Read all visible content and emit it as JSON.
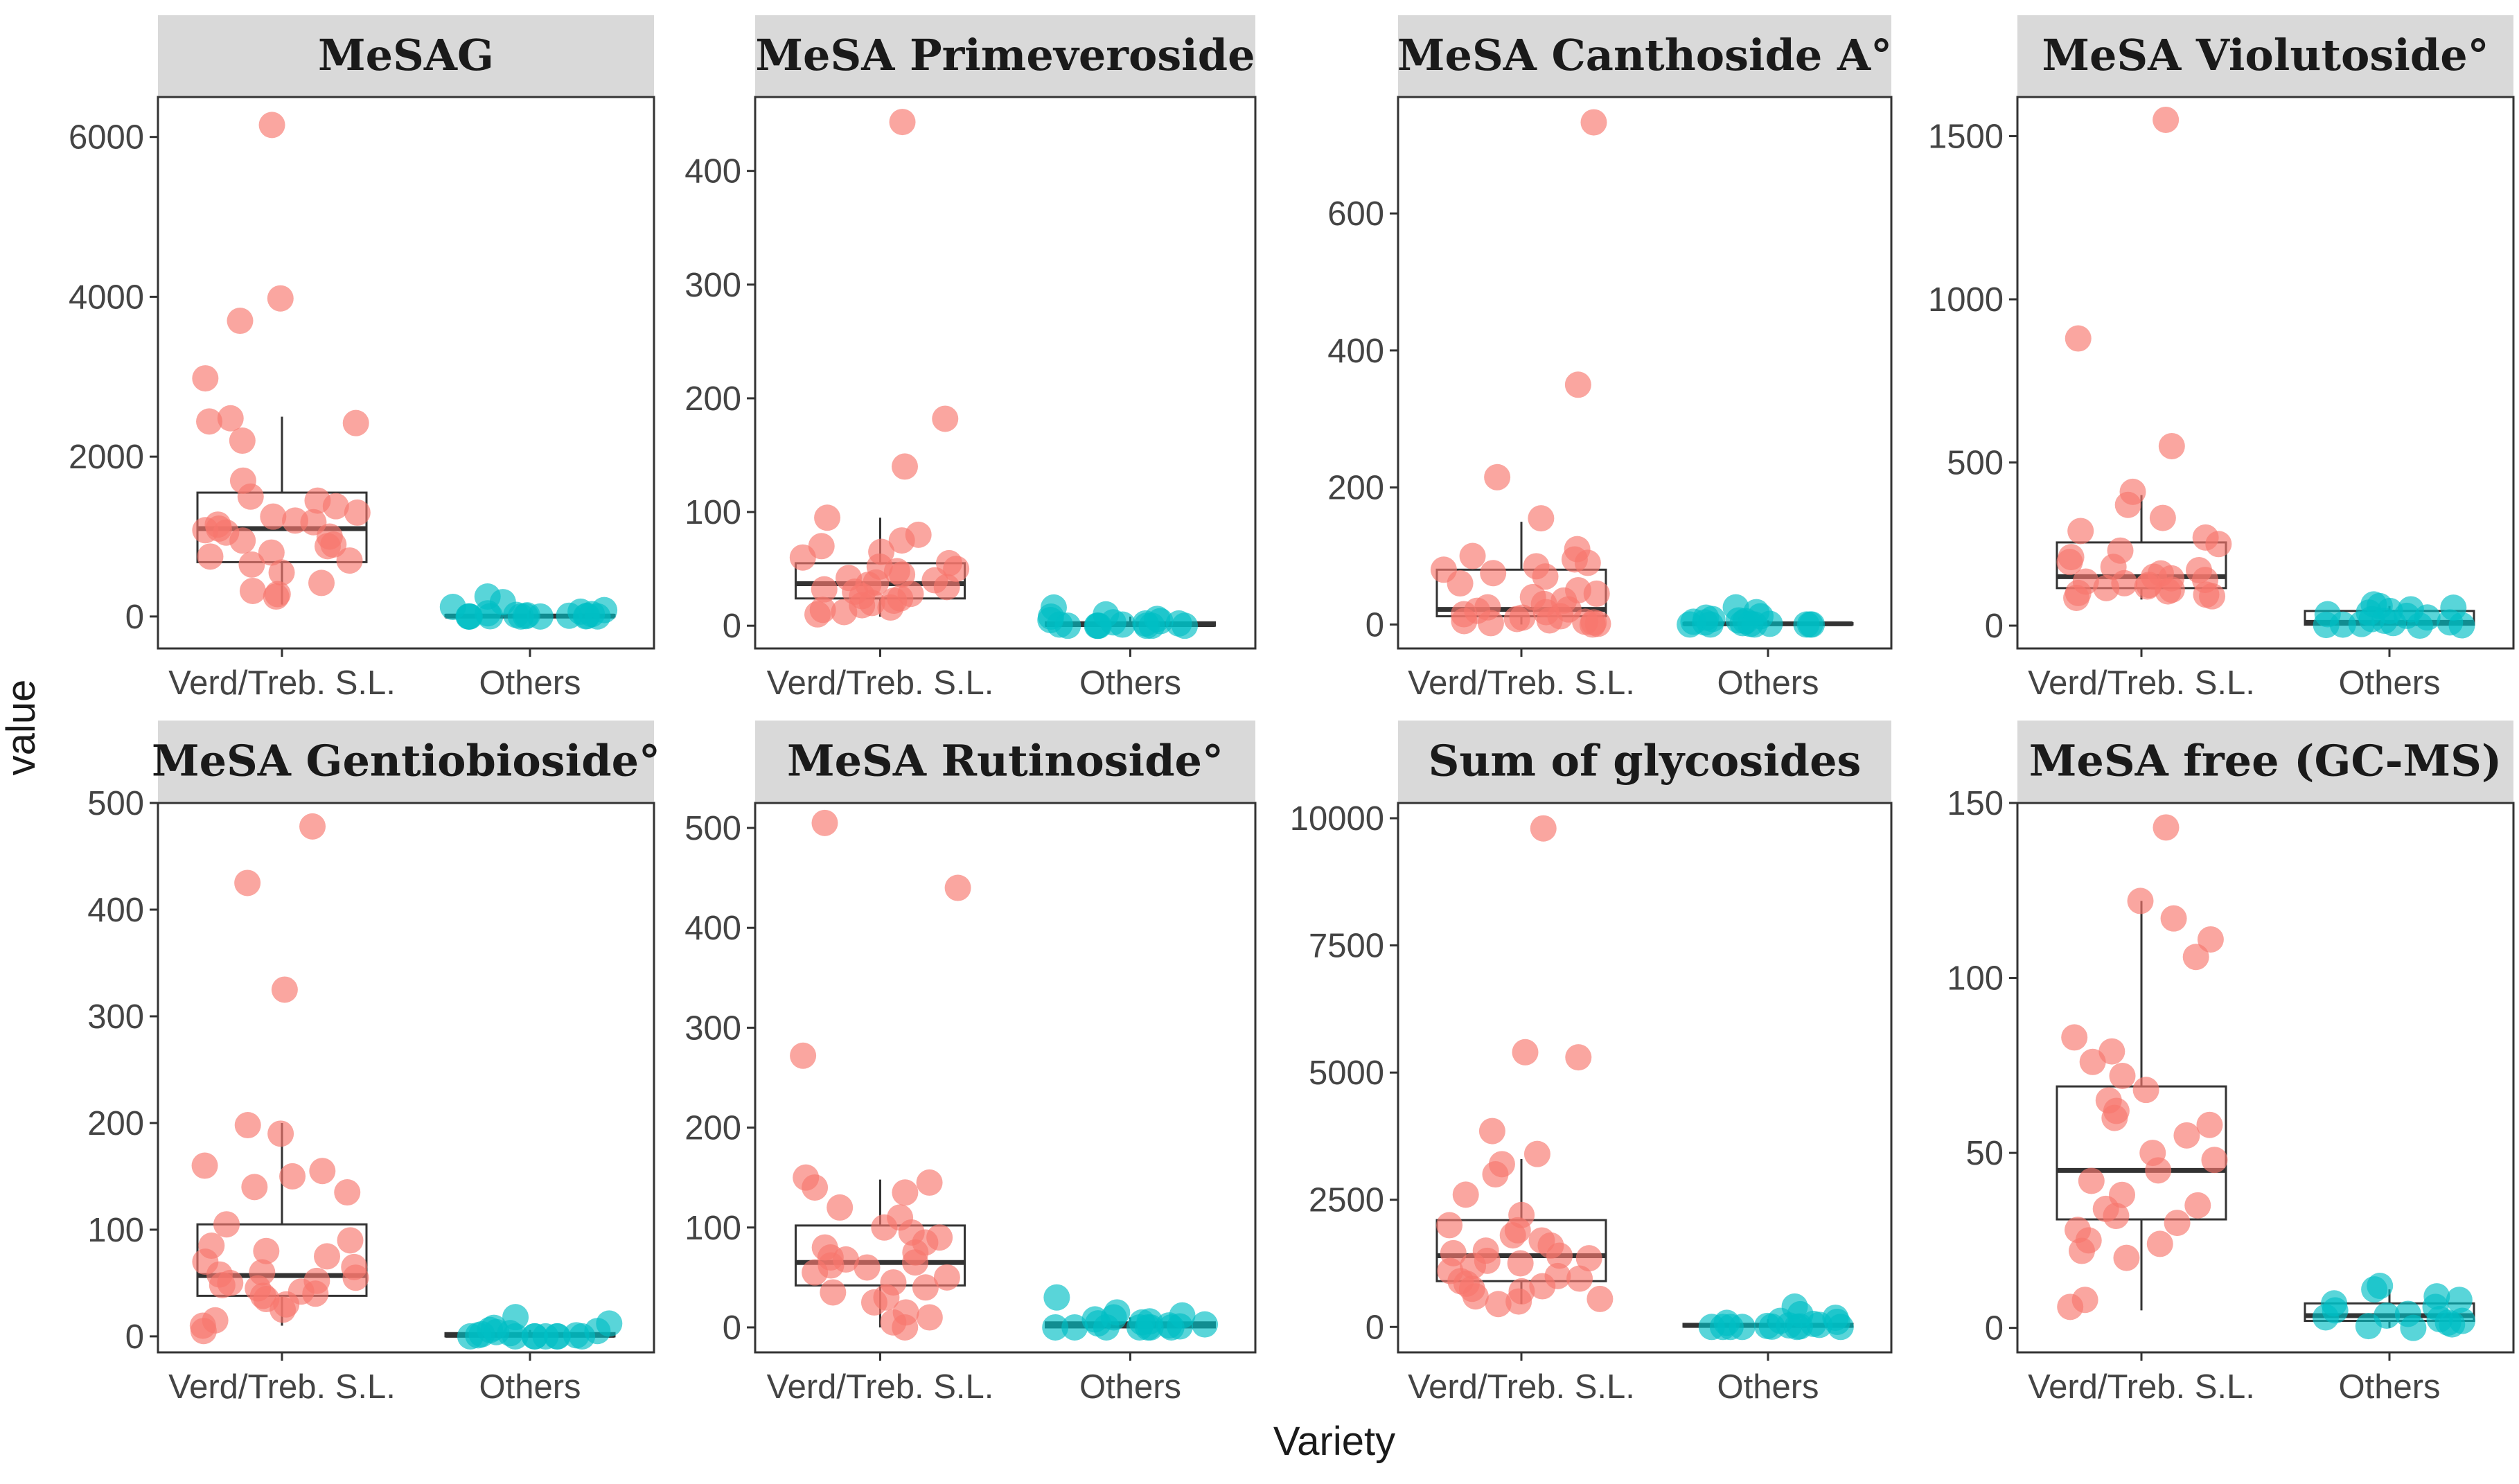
{
  "chart_data": {
    "type": "boxplot-jitter",
    "layout": "facet grid, 2 rows x 4 columns, independent y scales",
    "xlabel": "Variety",
    "ylabel": "value",
    "categories": [
      "Verd/Treb. S.L.",
      "Others"
    ],
    "colors": {
      "Verd/Treb. S.L.": "#f8766d",
      "Others": "#00bfc4",
      "strip": "#d9d9d9",
      "box": "#333333"
    },
    "panels": [
      {
        "title": "MeSAG",
        "ylim": [
          -400,
          6500
        ],
        "yticks": [
          0,
          2000,
          4000,
          6000
        ],
        "box": [
          {
            "category": "Verd/Treb. S.L.",
            "whisker_low": 150,
            "q1": 680,
            "median": 1100,
            "q3": 1550,
            "whisker_high": 2500
          },
          {
            "category": "Others",
            "whisker_low": 0,
            "q1": 0,
            "median": 5,
            "q3": 20,
            "whisker_high": 70
          }
        ],
        "points": [
          {
            "category": "Verd/Treb. S.L.",
            "values": [
              6150,
              3980,
              3700,
              2980,
              2480,
              2440,
              2420,
              2200,
              1700,
              1500,
              1450,
              1380,
              1300,
              1250,
              1200,
              1180,
              1150,
              1100,
              1080,
              1050,
              1000,
              950,
              900,
              880,
              800,
              750,
              700,
              650,
              550,
              420,
              320,
              280,
              250
            ]
          },
          {
            "category": "Others",
            "values": [
              250,
              180,
              120,
              80,
              60,
              40,
              30,
              20,
              15,
              10,
              8,
              5,
              3,
              2,
              1,
              0,
              0,
              0,
              0,
              0
            ]
          }
        ]
      },
      {
        "title": "MeSA Primeveroside",
        "ylim": [
          -20,
          465
        ],
        "yticks": [
          0,
          100,
          200,
          300,
          400
        ],
        "box": [
          {
            "category": "Verd/Treb. S.L.",
            "whisker_low": 8,
            "q1": 24,
            "median": 37,
            "q3": 55,
            "whisker_high": 95
          },
          {
            "category": "Others",
            "whisker_low": 0,
            "q1": 0,
            "median": 1,
            "q3": 3,
            "whisker_high": 8
          }
        ],
        "points": [
          {
            "category": "Verd/Treb. S.L.",
            "values": [
              443,
              182,
              140,
              95,
              80,
              75,
              70,
              65,
              60,
              55,
              52,
              50,
              48,
              45,
              42,
              40,
              38,
              36,
              34,
              32,
              30,
              28,
              26,
              24,
              22,
              20,
              18,
              16,
              14,
              12,
              10
            ]
          },
          {
            "category": "Others",
            "values": [
              16,
              10,
              8,
              6,
              5,
              4,
              3,
              2,
              2,
              1,
              1,
              0,
              0,
              0,
              0,
              0,
              0,
              0
            ]
          }
        ]
      },
      {
        "title": "MeSA Canthoside A°",
        "ylim": [
          -35,
          770
        ],
        "yticks": [
          0,
          200,
          400,
          600
        ],
        "box": [
          {
            "category": "Verd/Treb. S.L.",
            "whisker_low": 0,
            "q1": 12,
            "median": 22,
            "q3": 80,
            "whisker_high": 150
          },
          {
            "category": "Others",
            "whisker_low": 0,
            "q1": 0,
            "median": 1,
            "q3": 2,
            "whisker_high": 6
          }
        ],
        "points": [
          {
            "category": "Verd/Treb. S.L.",
            "values": [
              733,
              350,
              215,
              155,
              110,
              100,
              95,
              90,
              85,
              80,
              75,
              70,
              60,
              50,
              45,
              40,
              35,
              30,
              25,
              22,
              20,
              18,
              15,
              12,
              10,
              8,
              6,
              5,
              4,
              3,
              2,
              1,
              0
            ]
          },
          {
            "category": "Others",
            "values": [
              25,
              18,
              12,
              10,
              8,
              6,
              5,
              4,
              3,
              2,
              1,
              1,
              0,
              0,
              0,
              0,
              0,
              0
            ]
          }
        ]
      },
      {
        "title": "MeSA Violutoside°",
        "ylim": [
          -70,
          1620
        ],
        "yticks": [
          0,
          500,
          1000,
          1500
        ],
        "box": [
          {
            "category": "Verd/Treb. S.L.",
            "whisker_low": 80,
            "q1": 115,
            "median": 150,
            "q3": 255,
            "whisker_high": 400
          },
          {
            "category": "Others",
            "whisker_low": 0,
            "q1": 3,
            "median": 10,
            "q3": 45,
            "whisker_high": 60
          }
        ],
        "points": [
          {
            "category": "Verd/Treb. S.L.",
            "values": [
              1550,
              880,
              550,
              410,
              370,
              330,
              290,
              270,
              250,
              230,
              210,
              195,
              180,
              170,
              160,
              150,
              145,
              140,
              135,
              130,
              125,
              120,
              115,
              110,
              105,
              100,
              95,
              90,
              85
            ]
          },
          {
            "category": "Others",
            "values": [
              65,
              60,
              55,
              50,
              45,
              40,
              35,
              30,
              25,
              20,
              15,
              10,
              8,
              5,
              3,
              2,
              1,
              0
            ]
          }
        ]
      },
      {
        "title": "MeSA Gentiobioside°",
        "ylim": [
          -15,
          500
        ],
        "yticks": [
          0,
          100,
          200,
          300,
          400,
          500
        ],
        "box": [
          {
            "category": "Verd/Treb. S.L.",
            "whisker_low": 10,
            "q1": 38,
            "median": 57,
            "q3": 105,
            "whisker_high": 200
          },
          {
            "category": "Others",
            "whisker_low": 0,
            "q1": 0,
            "median": 1,
            "q3": 3,
            "whisker_high": 6
          }
        ],
        "points": [
          {
            "category": "Verd/Treb. S.L.",
            "values": [
              478,
              425,
              325,
              198,
              190,
              160,
              155,
              150,
              140,
              135,
              105,
              90,
              85,
              80,
              75,
              70,
              65,
              60,
              58,
              55,
              52,
              50,
              48,
              45,
              42,
              40,
              38,
              35,
              30,
              25,
              15,
              10,
              5
            ]
          },
          {
            "category": "Others",
            "values": [
              18,
              12,
              8,
              6,
              5,
              4,
              3,
              2,
              1,
              1,
              0,
              0,
              0,
              0,
              0,
              0,
              0,
              0
            ]
          }
        ]
      },
      {
        "title": "MeSA Rutinoside°",
        "ylim": [
          -25,
          525
        ],
        "yticks": [
          0,
          100,
          200,
          300,
          400,
          500
        ],
        "box": [
          {
            "category": "Verd/Treb. S.L.",
            "whisker_low": 0,
            "q1": 42,
            "median": 65,
            "q3": 102,
            "whisker_high": 148
          },
          {
            "category": "Others",
            "whisker_low": 0,
            "q1": 0,
            "median": 2,
            "q3": 5,
            "whisker_high": 10
          }
        ],
        "points": [
          {
            "category": "Verd/Treb. S.L.",
            "values": [
              505,
              440,
              272,
              150,
              145,
              140,
              135,
              120,
              110,
              100,
              95,
              90,
              85,
              80,
              75,
              70,
              68,
              65,
              62,
              60,
              55,
              50,
              45,
              40,
              35,
              30,
              25,
              15,
              10,
              5,
              0
            ]
          },
          {
            "category": "Others",
            "values": [
              30,
              15,
              12,
              10,
              8,
              6,
              5,
              4,
              3,
              2,
              1,
              0,
              0,
              0,
              0,
              0,
              0,
              0
            ]
          }
        ]
      },
      {
        "title": "Sum of glycosides",
        "ylim": [
          -500,
          10300
        ],
        "yticks": [
          0,
          2500,
          5000,
          7500,
          10000
        ],
        "box": [
          {
            "category": "Verd/Treb. S.L.",
            "whisker_low": 450,
            "q1": 900,
            "median": 1400,
            "q3": 2100,
            "whisker_high": 3300
          },
          {
            "category": "Others",
            "whisker_low": 0,
            "q1": 5,
            "median": 30,
            "q3": 60,
            "whisker_high": 150
          }
        ],
        "points": [
          {
            "category": "Verd/Treb. S.L.",
            "values": [
              9800,
              5400,
              5300,
              3850,
              3400,
              3200,
              3000,
              2600,
              2200,
              2000,
              1900,
              1800,
              1700,
              1600,
              1500,
              1450,
              1400,
              1350,
              1300,
              1250,
              1200,
              1100,
              1000,
              950,
              900,
              850,
              800,
              750,
              700,
              600,
              550,
              500,
              450
            ]
          },
          {
            "category": "Others",
            "values": [
              400,
              250,
              180,
              120,
              100,
              80,
              60,
              40,
              30,
              20,
              10,
              5,
              0,
              0,
              0,
              0,
              0,
              0
            ]
          }
        ]
      },
      {
        "title": "MeSA free (GC-MS)",
        "ylim": [
          -7,
          150
        ],
        "yticks": [
          0,
          50,
          100,
          150
        ],
        "box": [
          {
            "category": "Verd/Treb. S.L.",
            "whisker_low": 5,
            "q1": 31,
            "median": 45,
            "q3": 69,
            "whisker_high": 122
          },
          {
            "category": "Others",
            "whisker_low": 0,
            "q1": 2,
            "median": 3.5,
            "q3": 7,
            "whisker_high": 11
          }
        ],
        "points": [
          {
            "category": "Verd/Treb. S.L.",
            "values": [
              143,
              122,
              117,
              111,
              106,
              83,
              79,
              76,
              72,
              68,
              65,
              62,
              60,
              58,
              55,
              50,
              48,
              45,
              42,
              38,
              35,
              34,
              32,
              30,
              28,
              25,
              24,
              22,
              20,
              8,
              6
            ]
          },
          {
            "category": "Others",
            "values": [
              12,
              11,
              9,
              8,
              7,
              6,
              5,
              4,
              3.5,
              3,
              2.5,
              2,
              1.5,
              1,
              0.5,
              0
            ]
          }
        ]
      }
    ]
  }
}
